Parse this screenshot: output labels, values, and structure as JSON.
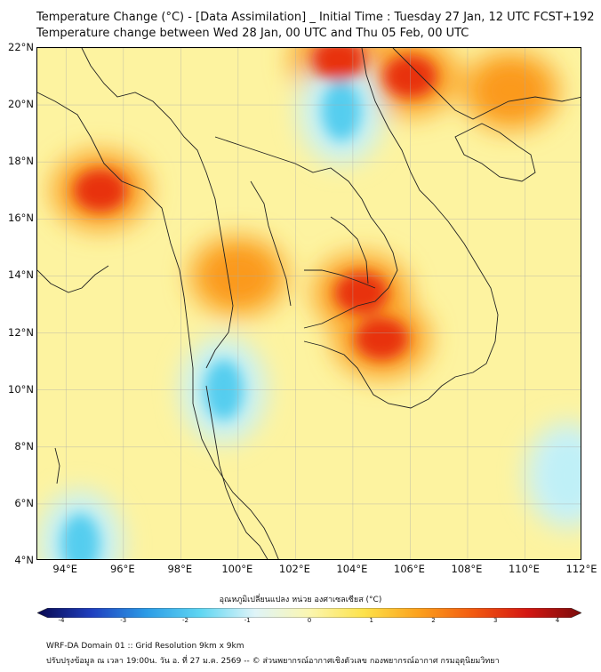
{
  "title": {
    "line1": "Temperature Change (°C) - [Data Assimilation] _ Initial Time : Tuesday 27 Jan, 12 UTC FCST+192",
    "line2": "Temperature change between Wed 28 Jan, 00 UTC and Thu 05 Feb, 00 UTC"
  },
  "map": {
    "y_ticks": [
      "22°N",
      "20°N",
      "18°N",
      "16°N",
      "14°N",
      "12°N",
      "10°N",
      "8°N",
      "6°N",
      "4°N"
    ],
    "x_ticks": [
      "94°E",
      "96°E",
      "98°E",
      "100°E",
      "102°E",
      "104°E",
      "106°E",
      "108°E",
      "110°E",
      "112°E"
    ],
    "lon_range": [
      93,
      112
    ],
    "lat_range": [
      4,
      22
    ],
    "warm_spots": [
      {
        "lon": 95.2,
        "lat": 17.0,
        "level": 3
      },
      {
        "lon": 103.5,
        "lat": 21.6,
        "level": 3
      },
      {
        "lon": 106.0,
        "lat": 21.0,
        "level": 3
      },
      {
        "lon": 109.5,
        "lat": 20.5,
        "level": 2
      },
      {
        "lon": 104.3,
        "lat": 13.4,
        "level": 3
      },
      {
        "lon": 105.0,
        "lat": 11.8,
        "level": 3
      },
      {
        "lon": 100.0,
        "lat": 14.0,
        "level": 2
      }
    ],
    "cool_spots": [
      {
        "lon": 103.6,
        "lat": 19.8,
        "level": -2
      },
      {
        "lon": 99.5,
        "lat": 10.0,
        "level": -2
      },
      {
        "lon": 94.5,
        "lat": 4.6,
        "level": -2
      },
      {
        "lon": 111.5,
        "lat": 7.0,
        "level": -1
      }
    ]
  },
  "colorbar": {
    "label": "อุณหภูมิเปลี่ยนแปลง หน่วย องศาเซลเซียส (°C)",
    "ticks": [
      "-4",
      "-3",
      "-2",
      "-1",
      "0",
      "1",
      "2",
      "3",
      "4"
    ],
    "colors": [
      "#08084f",
      "#1f3fbf",
      "#2b9be6",
      "#5fd6f2",
      "#dff4f8",
      "#fbf6b0",
      "#fde24a",
      "#fca11c",
      "#f25a10",
      "#d41712",
      "#7a0c0c"
    ]
  },
  "footer": {
    "line1": "WRF-DA Domain 01 :: Grid Resolution 9km x 9km",
    "line2": "ปรับปรุงข้อมูล ณ เวลา 19:00น. วัน อ. ที่ 27 ม.ค. 2569 -- © ส่วนพยากรณ์อากาศเชิงตัวเลข กองพยากรณ์อากาศ กรมอุตุนิยมวิทยา"
  }
}
